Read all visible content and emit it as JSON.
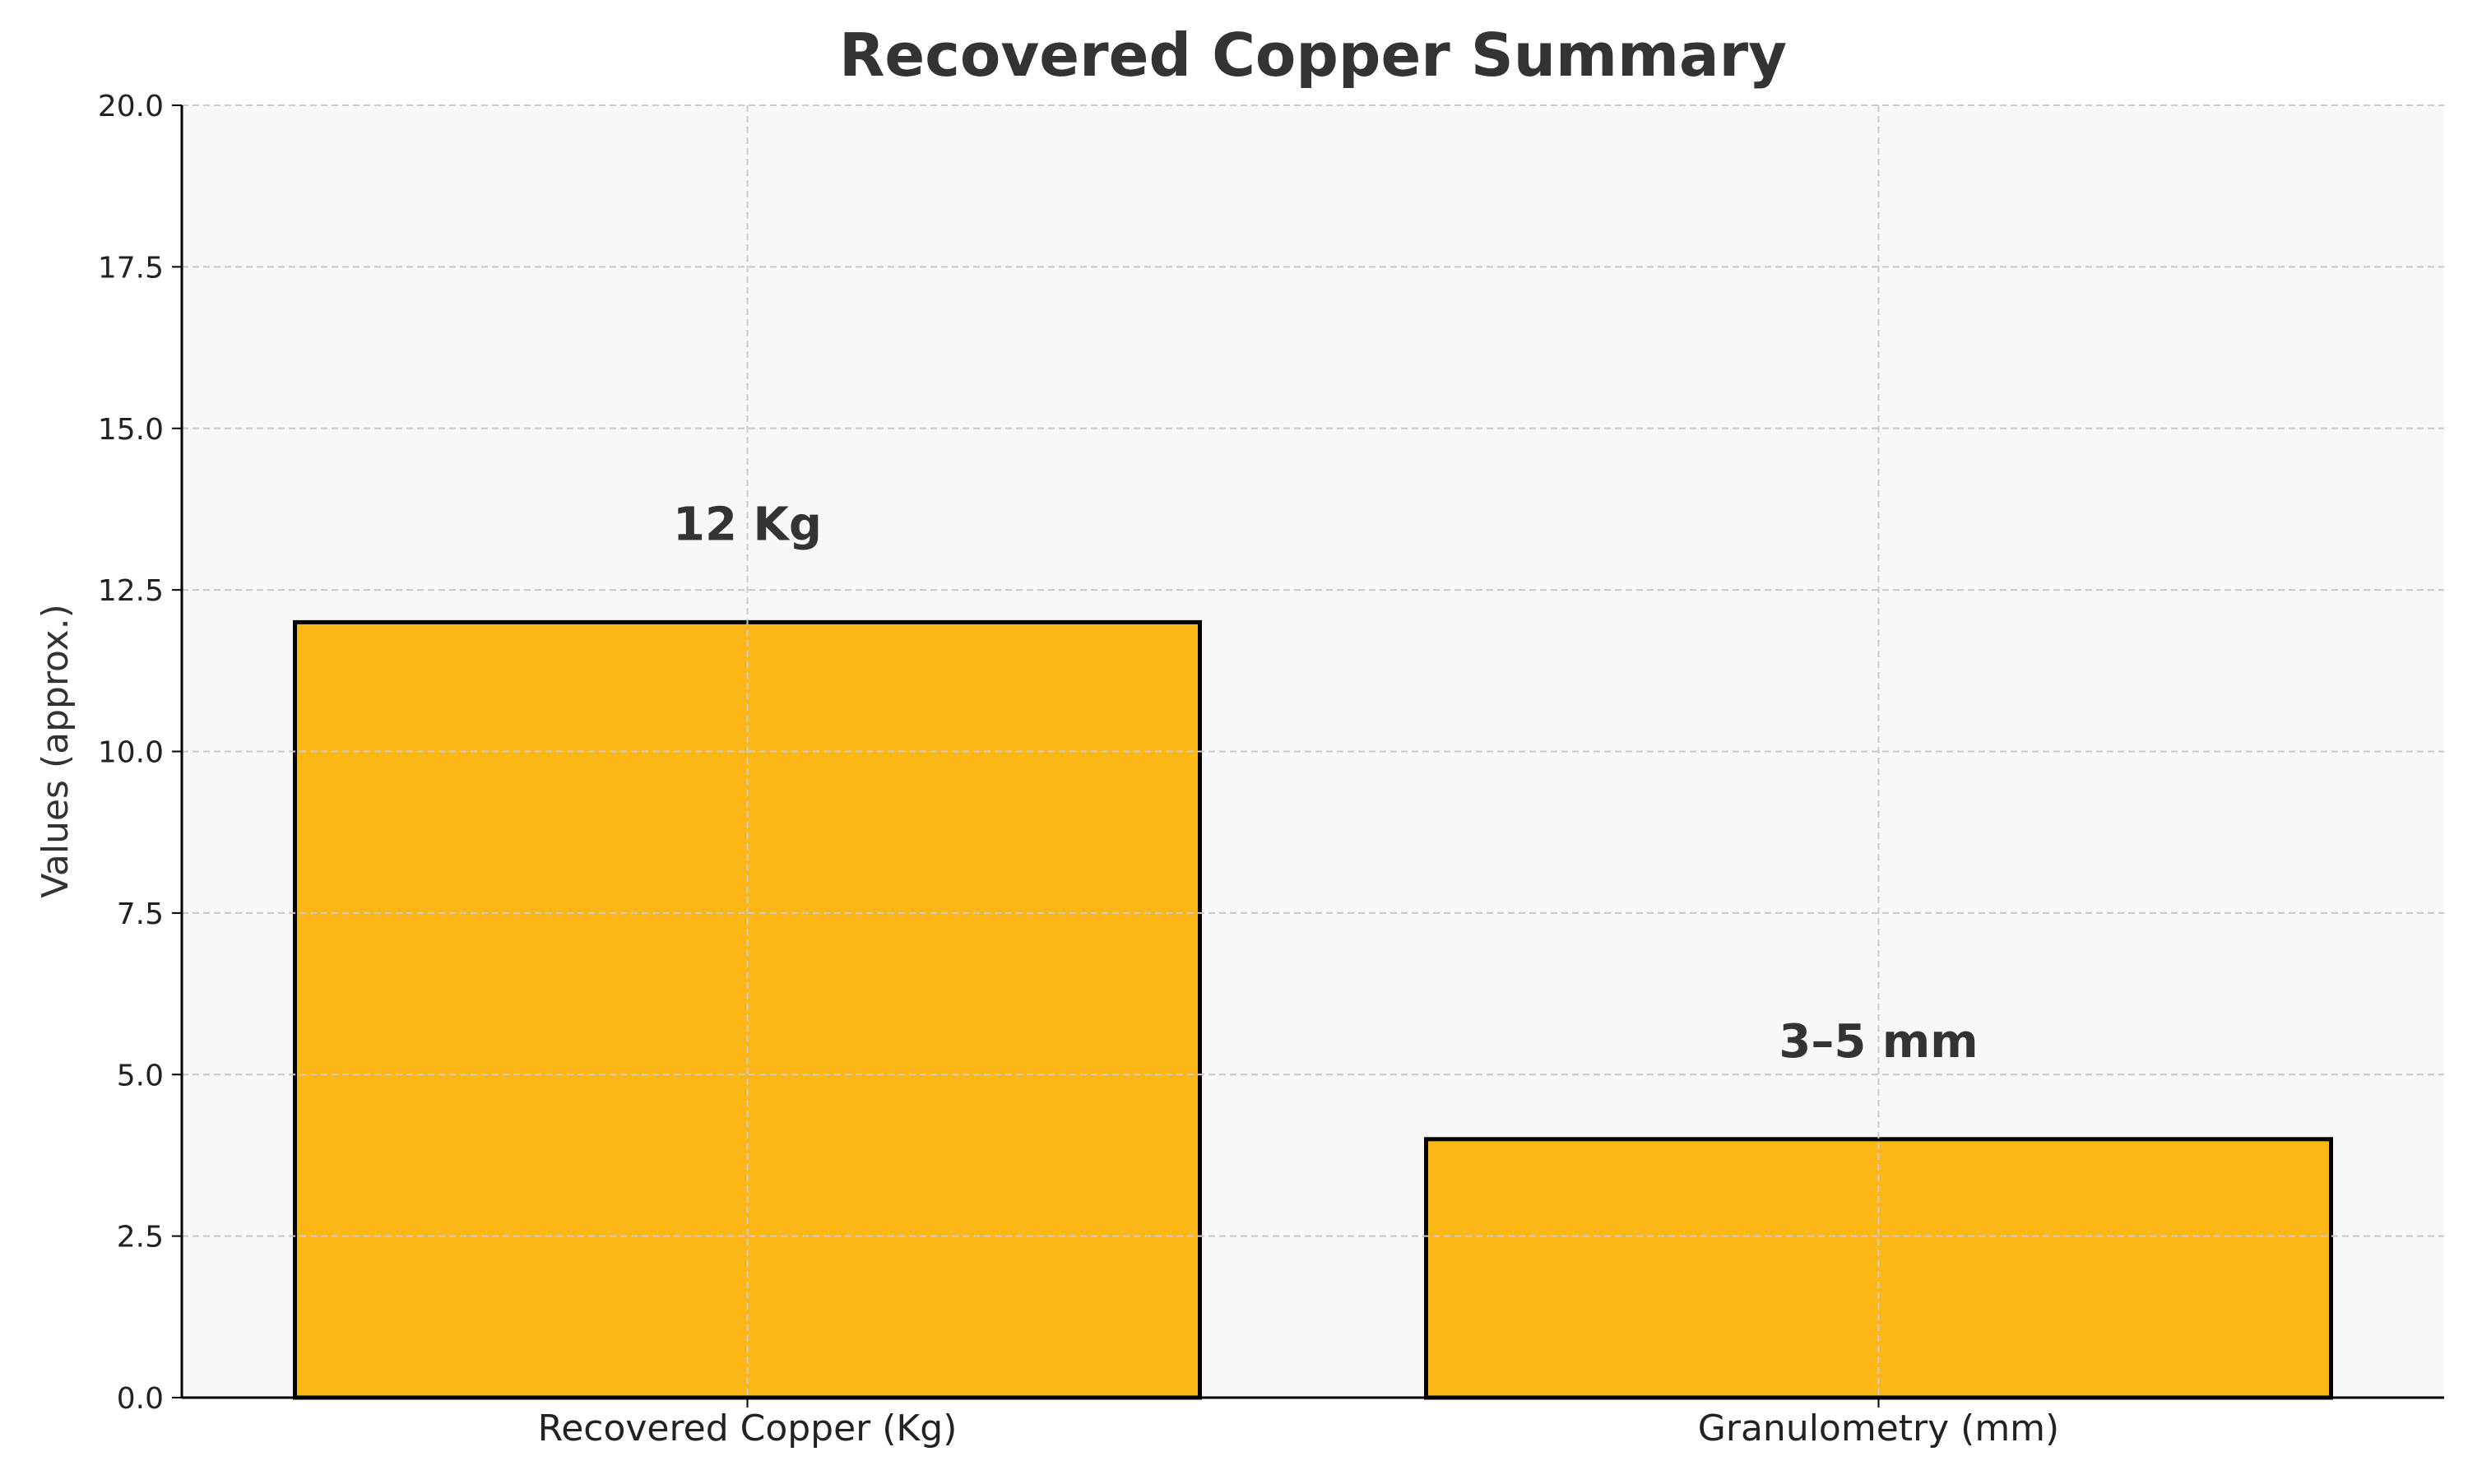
{
  "chart_data": {
    "type": "bar",
    "title": "Recovered Copper Summary",
    "xlabel": "",
    "ylabel": "Values (approx.)",
    "categories": [
      "Recovered Copper (Kg)",
      "Granulometry (mm)"
    ],
    "values": [
      12,
      4
    ],
    "data_labels": [
      "12 Kg",
      "3–5 mm"
    ],
    "ylim": [
      0,
      20
    ],
    "yticks": [
      0,
      2.5,
      5,
      7.5,
      10,
      12.5,
      15,
      17.5,
      20
    ],
    "ytick_labels": [
      "0.0",
      "2.5",
      "5.0",
      "7.5",
      "10.0",
      "12.5",
      "15.0",
      "17.5",
      "20.0"
    ],
    "grid": true,
    "legend": "none",
    "colors": {
      "bar_fill": "#FCB716",
      "bar_edge": "#000000",
      "plot_background": "#F8F8F8",
      "grid": "#CCCCCC",
      "text": "#333333",
      "axis": "#000000"
    }
  }
}
